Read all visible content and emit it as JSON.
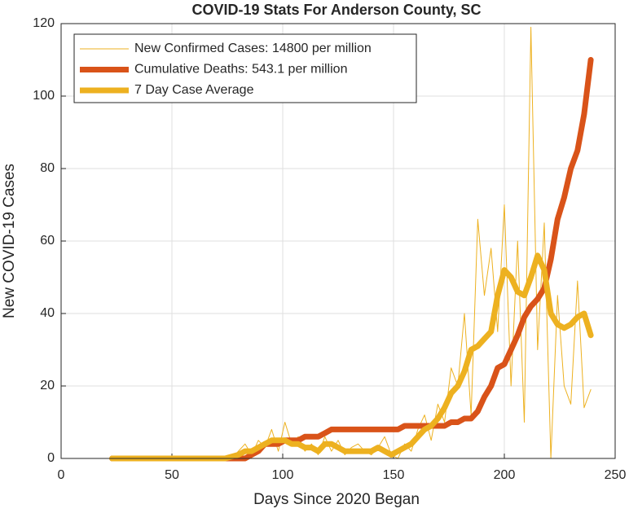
{
  "chart_data": {
    "type": "line",
    "title": "COVID-19 Stats For Anderson County, SC",
    "x_label": "Days Since 2020 Began",
    "y_label": "New COVID-19 Cases",
    "x": [
      23,
      26,
      29,
      32,
      35,
      38,
      41,
      44,
      47,
      50,
      53,
      56,
      59,
      62,
      65,
      68,
      71,
      74,
      77,
      80,
      83,
      86,
      89,
      92,
      95,
      98,
      101,
      104,
      107,
      110,
      113,
      116,
      119,
      122,
      125,
      128,
      131,
      134,
      137,
      140,
      143,
      146,
      149,
      152,
      155,
      158,
      161,
      164,
      167,
      170,
      173,
      176,
      179,
      182,
      185,
      188,
      191,
      194,
      197,
      200,
      203,
      206,
      209,
      212,
      215,
      218,
      221,
      224,
      227,
      230,
      233,
      236,
      239
    ],
    "series": [
      {
        "name": "New Confirmed Cases: 14800 per million",
        "color": "#EDB120",
        "width": 1,
        "values": [
          0,
          0,
          0,
          0,
          0,
          0,
          0,
          0,
          0,
          0,
          0,
          0,
          0,
          0,
          0,
          0,
          0,
          0,
          0,
          2,
          4,
          1,
          5,
          3,
          8,
          2,
          10,
          4,
          6,
          2,
          4,
          1,
          6,
          2,
          5,
          1,
          3,
          4,
          2,
          1,
          3,
          6,
          1,
          0,
          4,
          2,
          8,
          12,
          5,
          15,
          10,
          25,
          20,
          40,
          12,
          66,
          45,
          58,
          35,
          70,
          20,
          60,
          10,
          119,
          30,
          65,
          0,
          45,
          20,
          15,
          49,
          14,
          19
        ]
      },
      {
        "name": "Cumulative Deaths: 543.1 per million",
        "color": "#D95319",
        "width": 7,
        "values": [
          0,
          0,
          0,
          0,
          0,
          0,
          0,
          0,
          0,
          0,
          0,
          0,
          0,
          0,
          0,
          0,
          0,
          0,
          0,
          0,
          0,
          1,
          2,
          4,
          4,
          4,
          5,
          5,
          5,
          6,
          6,
          6,
          7,
          8,
          8,
          8,
          8,
          8,
          8,
          8,
          8,
          8,
          8,
          8,
          9,
          9,
          9,
          9,
          9,
          9,
          9,
          10,
          10,
          11,
          11,
          13,
          17,
          20,
          25,
          26,
          30,
          34,
          39,
          42,
          44,
          47,
          55,
          66,
          72,
          80,
          85,
          95,
          110
        ]
      },
      {
        "name": "7 Day Case Average",
        "color": "#EDB120",
        "width": 7,
        "values": [
          0,
          0,
          0,
          0,
          0,
          0,
          0,
          0,
          0,
          0,
          0,
          0,
          0,
          0,
          0,
          0,
          0,
          0,
          0.5,
          1,
          2,
          2,
          3,
          4,
          5,
          5,
          5,
          4,
          4,
          3,
          3,
          2,
          4,
          4,
          3,
          2,
          2,
          2,
          2,
          2,
          3,
          2,
          1,
          2,
          3,
          4,
          6,
          8,
          9,
          11,
          14,
          18,
          20,
          24,
          30,
          31,
          33,
          35,
          45,
          52,
          50,
          46,
          45,
          50,
          56,
          52,
          40,
          37,
          36,
          37,
          39,
          40,
          34
        ]
      }
    ],
    "xlim": [
      0,
      250
    ],
    "xticks": [
      0,
      50,
      100,
      150,
      200,
      250
    ],
    "ylim": [
      0,
      120
    ],
    "yticks": [
      0,
      20,
      40,
      60,
      80,
      100,
      120
    ],
    "grid": true,
    "legend": "upper left"
  }
}
